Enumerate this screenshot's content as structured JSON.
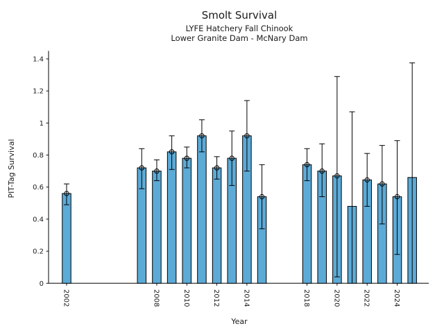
{
  "title": "Smolt Survival",
  "subtitle1": "LYFE Hatchery Fall Chinook",
  "subtitle2": "Lower Granite Dam - McNary Dam",
  "chart_data": {
    "type": "bar",
    "title": "Smolt Survival",
    "subtitle": [
      "LYFE Hatchery Fall Chinook",
      "Lower Granite Dam - McNary Dam"
    ],
    "xlabel": "Year",
    "ylabel": "PIT-Tag Survival",
    "xlim": [
      2000.8,
      2026.1
    ],
    "ylim": [
      0,
      1.45
    ],
    "grid": false,
    "legend": "none",
    "bar_color": "#5CAAD6",
    "bar_edge_color": "#000000",
    "error_bar_color": "#000000",
    "yticks": [
      0,
      0.2,
      0.4,
      0.6,
      0.8,
      1,
      1.2,
      1.4
    ],
    "ytick_labels": [
      "0",
      "0.2",
      "0.4",
      "0.6",
      "0.8",
      "1",
      "1.2",
      "1.4"
    ],
    "xticks": [
      2002,
      2008,
      2010,
      2012,
      2014,
      2018,
      2020,
      2022,
      2024
    ],
    "xtick_labels": [
      "2002",
      "2008",
      "2010",
      "2012",
      "2014",
      "2018",
      "2020",
      "2022",
      "2024"
    ],
    "points": [
      {
        "year": 2002,
        "value": 0.56,
        "ci_low": 0.49,
        "ci_high": 0.62,
        "marker": true,
        "cap_low": true
      },
      {
        "year": 2007,
        "value": 0.72,
        "ci_low": 0.59,
        "ci_high": 0.84,
        "marker": true,
        "cap_low": true
      },
      {
        "year": 2008,
        "value": 0.7,
        "ci_low": 0.64,
        "ci_high": 0.77,
        "marker": true,
        "cap_low": true
      },
      {
        "year": 2009,
        "value": 0.82,
        "ci_low": 0.71,
        "ci_high": 0.92,
        "marker": true,
        "cap_low": true
      },
      {
        "year": 2010,
        "value": 0.78,
        "ci_low": 0.72,
        "ci_high": 0.85,
        "marker": true,
        "cap_low": true
      },
      {
        "year": 2011,
        "value": 0.92,
        "ci_low": 0.82,
        "ci_high": 1.02,
        "marker": true,
        "cap_low": true
      },
      {
        "year": 2012,
        "value": 0.72,
        "ci_low": 0.65,
        "ci_high": 0.79,
        "marker": true,
        "cap_low": true
      },
      {
        "year": 2013,
        "value": 0.78,
        "ci_low": 0.61,
        "ci_high": 0.95,
        "marker": true,
        "cap_low": true
      },
      {
        "year": 2014,
        "value": 0.92,
        "ci_low": 0.7,
        "ci_high": 1.14,
        "marker": true,
        "cap_low": true
      },
      {
        "year": 2015,
        "value": 0.54,
        "ci_low": 0.34,
        "ci_high": 0.74,
        "marker": true,
        "cap_low": true
      },
      {
        "year": 2018,
        "value": 0.74,
        "ci_low": 0.64,
        "ci_high": 0.84,
        "marker": true,
        "cap_low": true
      },
      {
        "year": 2019,
        "value": 0.7,
        "ci_low": 0.54,
        "ci_high": 0.87,
        "marker": true,
        "cap_low": true
      },
      {
        "year": 2020,
        "value": 0.67,
        "ci_low": 0.04,
        "ci_high": 1.29,
        "marker": true,
        "cap_low": true
      },
      {
        "year": 2021,
        "value": 0.48,
        "ci_low": 0.0,
        "ci_high": 1.07,
        "marker": false,
        "cap_low": false
      },
      {
        "year": 2022,
        "value": 0.645,
        "ci_low": 0.48,
        "ci_high": 0.81,
        "marker": true,
        "cap_low": true
      },
      {
        "year": 2023,
        "value": 0.62,
        "ci_low": 0.37,
        "ci_high": 0.86,
        "marker": true,
        "cap_low": true
      },
      {
        "year": 2024,
        "value": 0.54,
        "ci_low": 0.18,
        "ci_high": 0.89,
        "marker": true,
        "cap_low": true
      },
      {
        "year": 2025,
        "value": 0.66,
        "ci_low": 0.0,
        "ci_high": 1.375,
        "marker": false,
        "cap_low": false
      }
    ]
  }
}
